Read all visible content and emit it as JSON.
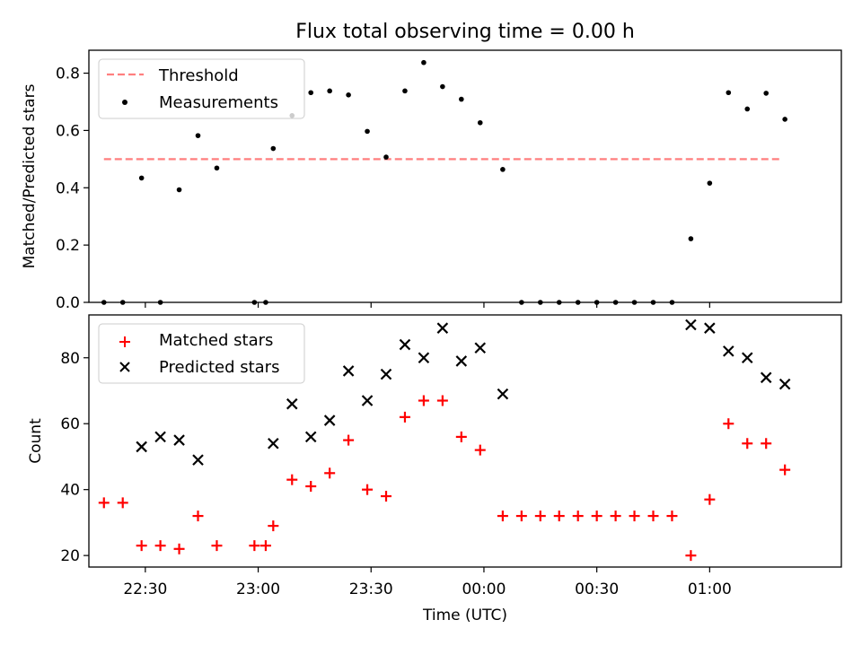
{
  "chart_data": [
    {
      "type": "scatter",
      "title": "Flux total observing time = 0.00 h",
      "ylabel": "Matched/Predicted stars",
      "xlabel": "",
      "xlim": [
        "22:15",
        "01:35"
      ],
      "ylim": [
        0,
        0.88
      ],
      "yticks": [
        "0.0",
        "0.2",
        "0.4",
        "0.6",
        "0.8"
      ],
      "legend_position": "upper-left",
      "threshold": {
        "name": "Threshold",
        "value": 0.5,
        "x_range": [
          "22:19",
          "01:19"
        ],
        "color": "#ff7f7f"
      },
      "series": [
        {
          "name": "Measurements",
          "marker": "dot",
          "color": "#000000",
          "x": [
            "22:19",
            "22:24",
            "22:29",
            "22:34",
            "22:39",
            "22:44",
            "22:49",
            "22:59",
            "23:02",
            "23:04",
            "23:09",
            "23:14",
            "23:19",
            "23:24",
            "23:29",
            "23:34",
            "23:39",
            "23:44",
            "23:49",
            "23:54",
            "23:59",
            "00:05",
            "00:10",
            "00:15",
            "00:20",
            "00:25",
            "00:30",
            "00:35",
            "00:40",
            "00:45",
            "00:50",
            "00:55",
            "01:00",
            "01:05",
            "01:10",
            "01:15",
            "01:20"
          ],
          "y": [
            0,
            0,
            0.434,
            0,
            0.393,
            0.582,
            0.469,
            0,
            0,
            0.537,
            0.652,
            0.732,
            0.738,
            0.724,
            0.597,
            0.507,
            0.738,
            0.837,
            0.753,
            0.709,
            0.627,
            0.464,
            0,
            0,
            0,
            0,
            0,
            0,
            0,
            0,
            0,
            0.222,
            0.416,
            0.732,
            0.675,
            0.73,
            0.639
          ]
        }
      ]
    },
    {
      "type": "scatter",
      "title": "",
      "ylabel": "Count",
      "xlabel": "Time (UTC)",
      "xlim": [
        "22:15",
        "01:35"
      ],
      "ylim": [
        16.5,
        93
      ],
      "yticks": [
        "20",
        "40",
        "60",
        "80"
      ],
      "xticks": [
        "22:30",
        "23:00",
        "23:30",
        "00:00",
        "00:30",
        "01:00"
      ],
      "legend_position": "upper-left",
      "series": [
        {
          "name": "Matched stars",
          "marker": "plus",
          "color": "#ff0000",
          "x": [
            "22:19",
            "22:24",
            "22:29",
            "22:34",
            "22:39",
            "22:44",
            "22:49",
            "22:59",
            "23:02",
            "23:04",
            "23:09",
            "23:14",
            "23:19",
            "23:24",
            "23:29",
            "23:34",
            "23:39",
            "23:44",
            "23:49",
            "23:54",
            "23:59",
            "00:05",
            "00:10",
            "00:15",
            "00:20",
            "00:25",
            "00:30",
            "00:35",
            "00:40",
            "00:45",
            "00:50",
            "00:55",
            "01:00",
            "01:05",
            "01:10",
            "01:15",
            "01:20"
          ],
          "y": [
            36,
            36,
            23,
            23,
            22,
            32,
            23,
            23,
            23,
            29,
            43,
            41,
            45,
            55,
            40,
            38,
            62,
            67,
            67,
            56,
            52,
            32,
            32,
            32,
            32,
            32,
            32,
            32,
            32,
            32,
            32,
            20,
            37,
            60,
            54,
            54,
            46
          ]
        },
        {
          "name": "Predicted stars",
          "marker": "x",
          "color": "#000000",
          "x": [
            "22:29",
            "22:34",
            "22:39",
            "22:44",
            "23:04",
            "23:09",
            "23:14",
            "23:19",
            "23:24",
            "23:29",
            "23:34",
            "23:39",
            "23:44",
            "23:49",
            "23:54",
            "23:59",
            "00:05",
            "00:55",
            "01:00",
            "01:05",
            "01:10",
            "01:15",
            "01:20"
          ],
          "y": [
            53,
            56,
            55,
            49,
            54,
            66,
            56,
            61,
            76,
            67,
            75,
            84,
            80,
            89,
            79,
            83,
            69,
            90,
            89,
            82,
            80,
            74,
            72
          ]
        }
      ]
    }
  ]
}
